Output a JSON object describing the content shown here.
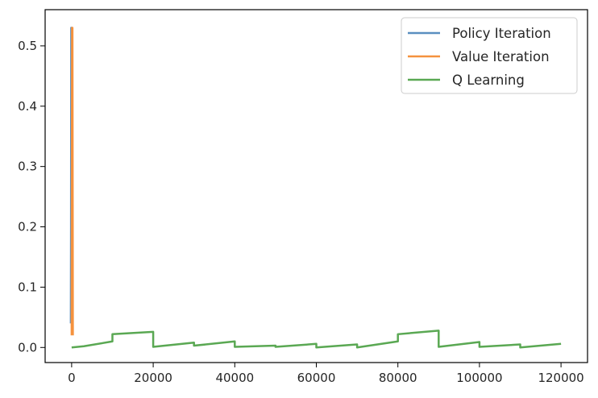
{
  "chart_data": {
    "type": "line",
    "title": "",
    "xlabel": "",
    "ylabel": "",
    "xlim": [
      -6500,
      126500
    ],
    "ylim": [
      -0.025,
      0.56
    ],
    "x_ticks": [
      0,
      20000,
      40000,
      60000,
      80000,
      100000,
      120000
    ],
    "y_ticks": [
      0.0,
      0.1,
      0.2,
      0.3,
      0.4,
      0.5
    ],
    "x_tick_labels": [
      "0",
      "20000",
      "40000",
      "60000",
      "80000",
      "100000",
      "120000"
    ],
    "y_tick_labels": [
      "0.0",
      "0.1",
      "0.2",
      "0.3",
      "0.4",
      "0.5"
    ],
    "grid": false,
    "legend_position": "top-right",
    "series": [
      {
        "name": "Policy Iteration",
        "color": "#5a8fc0",
        "points": [
          [
            -200,
            0.04
          ],
          [
            -150,
            0.2
          ],
          [
            -100,
            0.53
          ],
          [
            0,
            0.53
          ],
          [
            100,
            0.03
          ]
        ]
      },
      {
        "name": "Value Iteration",
        "color": "#f5923e",
        "points": [
          [
            0,
            0.02
          ],
          [
            100,
            0.53
          ],
          [
            200,
            0.53
          ],
          [
            300,
            0.02
          ]
        ]
      },
      {
        "name": "Q Learning",
        "color": "#5aa853",
        "points": [
          [
            0,
            0.0
          ],
          [
            3000,
            0.002
          ],
          [
            10000,
            0.01
          ],
          [
            10000,
            0.022
          ],
          [
            20000,
            0.026
          ],
          [
            20000,
            0.001
          ],
          [
            30000,
            0.008
          ],
          [
            30000,
            0.003
          ],
          [
            40000,
            0.01
          ],
          [
            40000,
            0.001
          ],
          [
            50000,
            0.003
          ],
          [
            50000,
            0.001
          ],
          [
            60000,
            0.006
          ],
          [
            60000,
            0.0
          ],
          [
            70000,
            0.005
          ],
          [
            70000,
            0.0
          ],
          [
            80000,
            0.01
          ],
          [
            80000,
            0.022
          ],
          [
            90000,
            0.028
          ],
          [
            90000,
            0.001
          ],
          [
            100000,
            0.009
          ],
          [
            100000,
            0.001
          ],
          [
            110000,
            0.005
          ],
          [
            110000,
            0.0
          ],
          [
            120000,
            0.006
          ]
        ]
      }
    ]
  }
}
